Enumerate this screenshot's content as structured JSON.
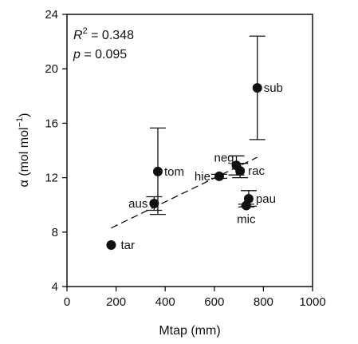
{
  "chart_data": {
    "type": "scatter",
    "xlabel": "Mtap (mm)",
    "ylabel_main": "α (mol mol",
    "ylabel_sup": "−1",
    "ylabel_close": ")",
    "xlim": [
      0,
      1000
    ],
    "ylim": [
      4,
      24
    ],
    "xticks": [
      0,
      200,
      400,
      600,
      800,
      1000
    ],
    "yticks": [
      4,
      8,
      12,
      16,
      20,
      24
    ],
    "grid": false,
    "stats": {
      "r2_var": "R",
      "r2_sup": "2",
      "r2_value": " = 0.348",
      "p_var": "p",
      "p_value": " = 0.095"
    },
    "points": [
      {
        "label": "tar",
        "x": 180,
        "y": 7.05,
        "yerr_low": null,
        "yerr_high": null
      },
      {
        "label": "aus",
        "x": 355,
        "y": 10.1,
        "yerr_low": 9.6,
        "yerr_high": 10.6
      },
      {
        "label": "tom",
        "x": 370,
        "y": 12.45,
        "yerr_low": 9.3,
        "yerr_high": 15.65
      },
      {
        "label": "hie",
        "x": 620,
        "y": 12.1,
        "yerr_low": 11.95,
        "yerr_high": 12.25
      },
      {
        "label": "neg",
        "x": 690,
        "y": 12.9,
        "yerr_low": 12.2,
        "yerr_high": 13.6
      },
      {
        "label": "rac",
        "x": 705,
        "y": 12.5,
        "yerr_low": 12.0,
        "yerr_high": 13.05
      },
      {
        "label": "sub",
        "x": 775,
        "y": 18.6,
        "yerr_low": 14.8,
        "yerr_high": 22.4
      },
      {
        "label": "pau",
        "x": 740,
        "y": 10.45,
        "yerr_low": 9.9,
        "yerr_high": 11.05
      },
      {
        "label": "mic",
        "x": 730,
        "y": 9.95,
        "yerr_low": 9.85,
        "yerr_high": 10.05
      }
    ],
    "fit_line": {
      "x": [
        180,
        775
      ],
      "y": [
        8.3,
        13.5
      ],
      "style": "dashed"
    }
  }
}
